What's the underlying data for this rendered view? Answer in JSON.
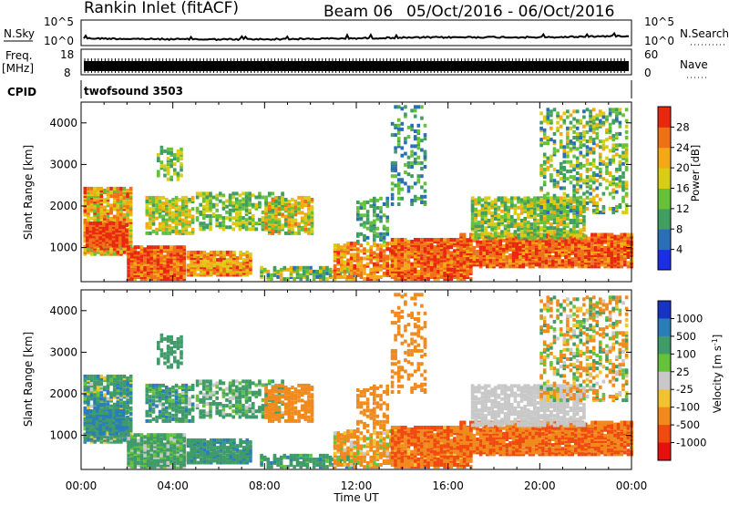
{
  "header": {
    "station": "Rankin Inlet (fitACF)",
    "beam": "Beam 06",
    "daterange": "05/Oct/2016 - 06/Oct/2016"
  },
  "noise_panel": {
    "left_label": "N.Sky",
    "right_label": "N.Search",
    "tick_top": "10^5",
    "tick_bottom": "10^0",
    "color_sky": "#000000"
  },
  "freq_panel": {
    "left_label": "Freq.",
    "left_unit": "[MHz]",
    "right_label": "Nave",
    "left_ticks": [
      "18",
      "8"
    ],
    "right_ticks": [
      "60",
      "0"
    ]
  },
  "cpid_panel": {
    "label": "CPID",
    "value": "twofsound 3503"
  },
  "chart_data": [
    {
      "type": "heatmap",
      "name": "power",
      "ylabel": "Slant Range [km]",
      "xlabel": "",
      "ylim": [
        180,
        4500
      ],
      "yticks": [
        1000,
        2000,
        3000,
        4000
      ],
      "colorbar_label": "Power [dB]",
      "colorbar_ticks": [
        "4",
        "8",
        "12",
        "16",
        "20",
        "24",
        "28"
      ],
      "colorbar_colors": [
        "#1a2ee6",
        "#2a6fb5",
        "#3f9e60",
        "#66c13a",
        "#d9cc16",
        "#f3a816",
        "#f07018",
        "#e8290f"
      ],
      "colorbar_range": [
        0,
        32
      ]
    },
    {
      "type": "heatmap",
      "name": "velocity",
      "ylabel": "Slant Range [km]",
      "xlabel": "Time UT",
      "ylim": [
        180,
        4500
      ],
      "yticks": [
        1000,
        2000,
        3000,
        4000
      ],
      "colorbar_label": "Velocity [m s^-1]",
      "colorbar_ticks": [
        "1000",
        "500",
        "100",
        "25",
        "-25",
        "-100",
        "-500",
        "-1000"
      ],
      "colorbar_colors": [
        "#1733c4",
        "#2b7db8",
        "#3f9b69",
        "#66c23a",
        "#c8c8c8",
        "#f2c230",
        "#f08a1c",
        "#f04a10",
        "#e8100c"
      ]
    }
  ],
  "time_axis": {
    "labels": [
      "00:00",
      "04:00",
      "08:00",
      "12:00",
      "16:00",
      "20:00",
      "00:00"
    ],
    "xlabel": "Time UT"
  }
}
